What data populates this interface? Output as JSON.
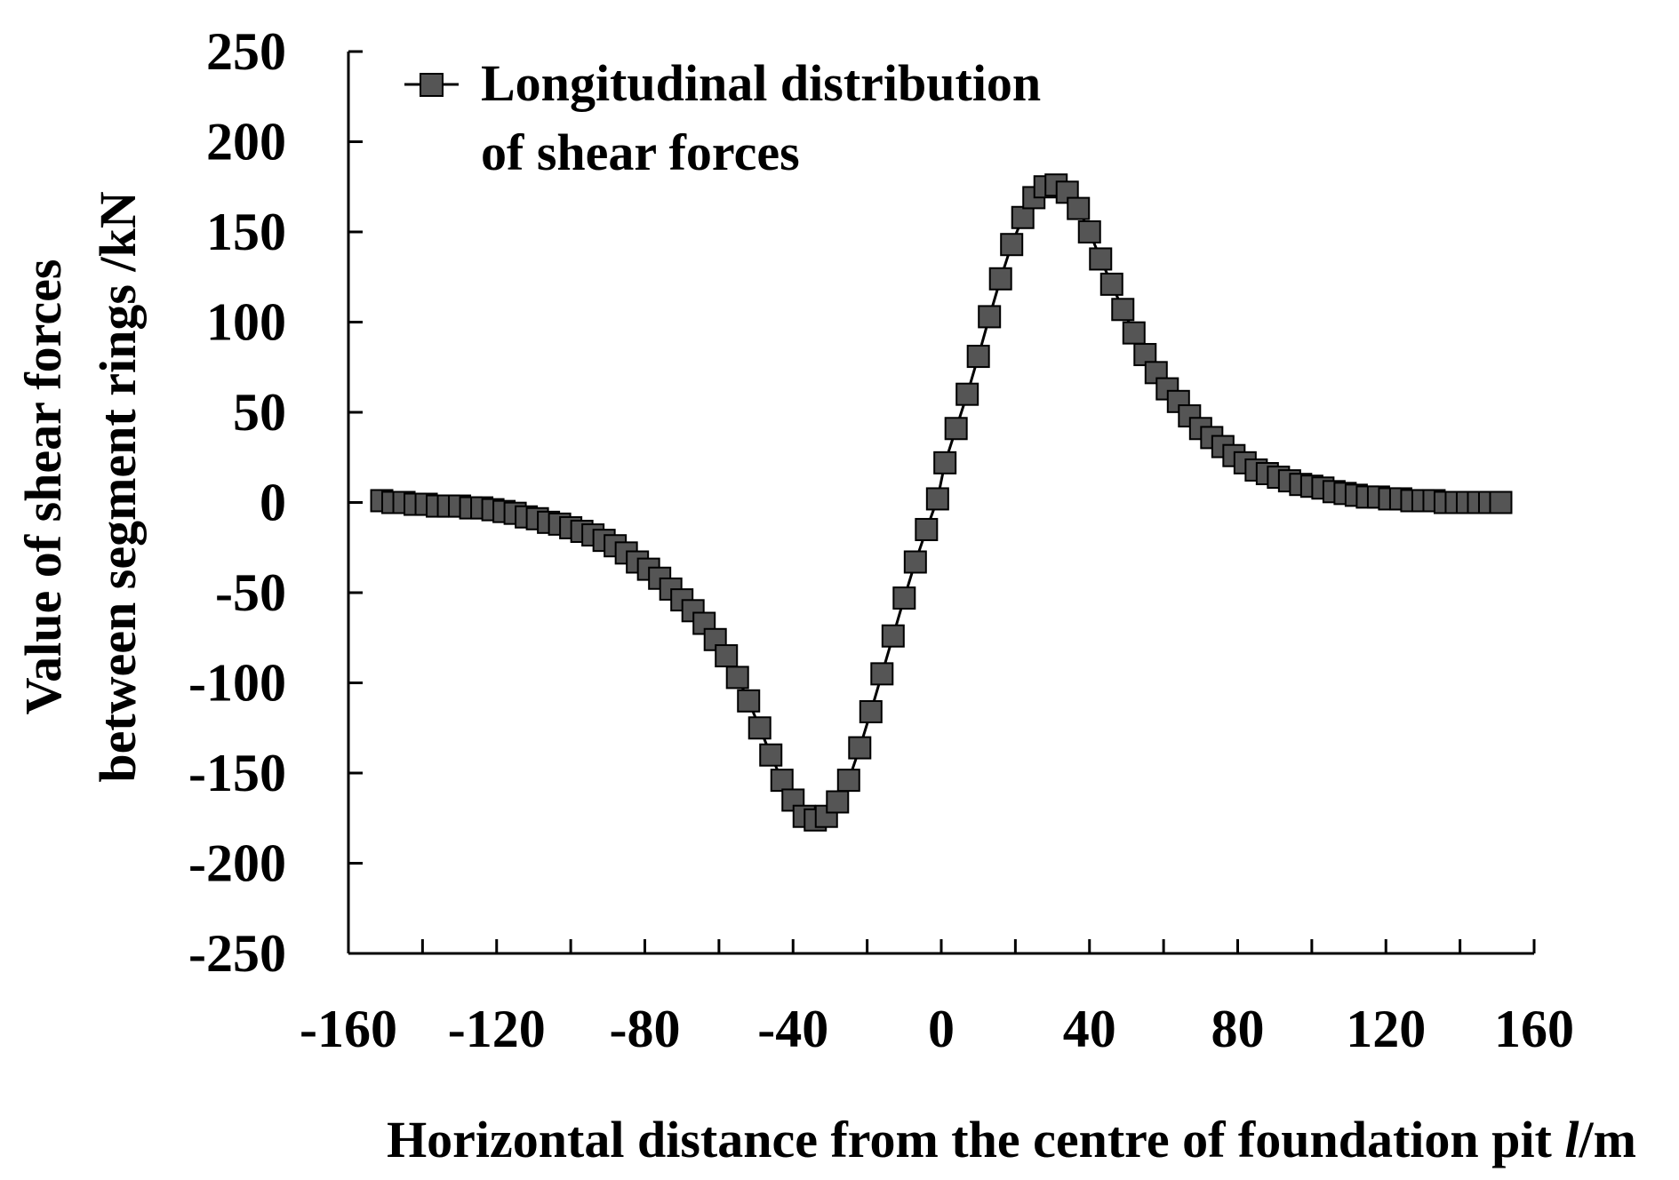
{
  "chart_data": {
    "type": "line",
    "title": "",
    "xlabel_main": "Horizontal distance from the centre of foundation pit ",
    "xlabel_italic": "l",
    "xlabel_unit": "/m",
    "ylabel_line1": "Value of shear forces",
    "ylabel_line2": "between segment rings /kN",
    "xlim": [
      -160,
      160
    ],
    "ylim": [
      -250,
      250
    ],
    "x_ticks": [
      -160,
      -120,
      -80,
      -40,
      0,
      40,
      80,
      120,
      160
    ],
    "x_tick_labels": [
      "-160",
      "-120",
      "-80",
      "-40",
      "0",
      "40",
      "80",
      "120",
      "160"
    ],
    "y_ticks": [
      250,
      200,
      150,
      100,
      50,
      0,
      -50,
      -100,
      -150,
      -200,
      -250
    ],
    "y_tick_labels": [
      "250",
      "200",
      "150",
      "100",
      "50",
      "0",
      "-50",
      "-100",
      "-150",
      "-200",
      "-250"
    ],
    "grid": false,
    "legend_position": "top-left",
    "legend_line1": "Longitudinal distribution",
    "legend_line2": "of shear forces",
    "series": [
      {
        "name": "Longitudinal distribution of shear forces",
        "marker": "square",
        "color": "#555555",
        "x": [
          -151,
          -148,
          -145,
          -142,
          -139,
          -136,
          -133,
          -130,
          -127,
          -124,
          -121,
          -118,
          -115,
          -112,
          -109,
          -106,
          -103,
          -100,
          -97,
          -94,
          -91,
          -88,
          -85,
          -82,
          -79,
          -76,
          -73,
          -70,
          -67,
          -64,
          -61,
          -58,
          -55,
          -52,
          -49,
          -46,
          -43,
          -40,
          -37,
          -34,
          -31,
          -28,
          -25,
          -22,
          -19,
          -16,
          -13,
          -10,
          -7,
          -4,
          -1,
          1,
          4,
          7,
          10,
          13,
          16,
          19,
          22,
          25,
          28,
          31,
          34,
          37,
          40,
          43,
          46,
          49,
          52,
          55,
          58,
          61,
          64,
          67,
          70,
          73,
          76,
          79,
          82,
          85,
          88,
          91,
          94,
          97,
          100,
          103,
          106,
          109,
          112,
          115,
          118,
          121,
          124,
          127,
          130,
          133,
          136,
          139,
          142,
          145,
          148,
          151
        ],
        "values": [
          1,
          0,
          0,
          -1,
          -1,
          -2,
          -2,
          -2,
          -3,
          -3,
          -4,
          -5,
          -6,
          -8,
          -9,
          -11,
          -12,
          -14,
          -16,
          -18,
          -21,
          -24,
          -28,
          -33,
          -37,
          -42,
          -48,
          -54,
          -60,
          -67,
          -76,
          -85,
          -97,
          -110,
          -125,
          -140,
          -154,
          -165,
          -174,
          -176,
          -174,
          -166,
          -154,
          -136,
          -116,
          -95,
          -74,
          -53,
          -33,
          -15,
          2,
          22,
          41,
          60,
          81,
          103,
          124,
          143,
          158,
          169,
          175,
          176,
          172,
          163,
          150,
          135,
          121,
          107,
          94,
          82,
          72,
          63,
          56,
          48,
          41,
          36,
          31,
          26,
          22,
          18,
          16,
          14,
          12,
          10,
          9,
          8,
          6,
          5,
          4,
          3,
          3,
          2,
          2,
          1,
          1,
          1,
          0,
          0,
          0,
          0,
          0,
          0
        ]
      }
    ]
  }
}
